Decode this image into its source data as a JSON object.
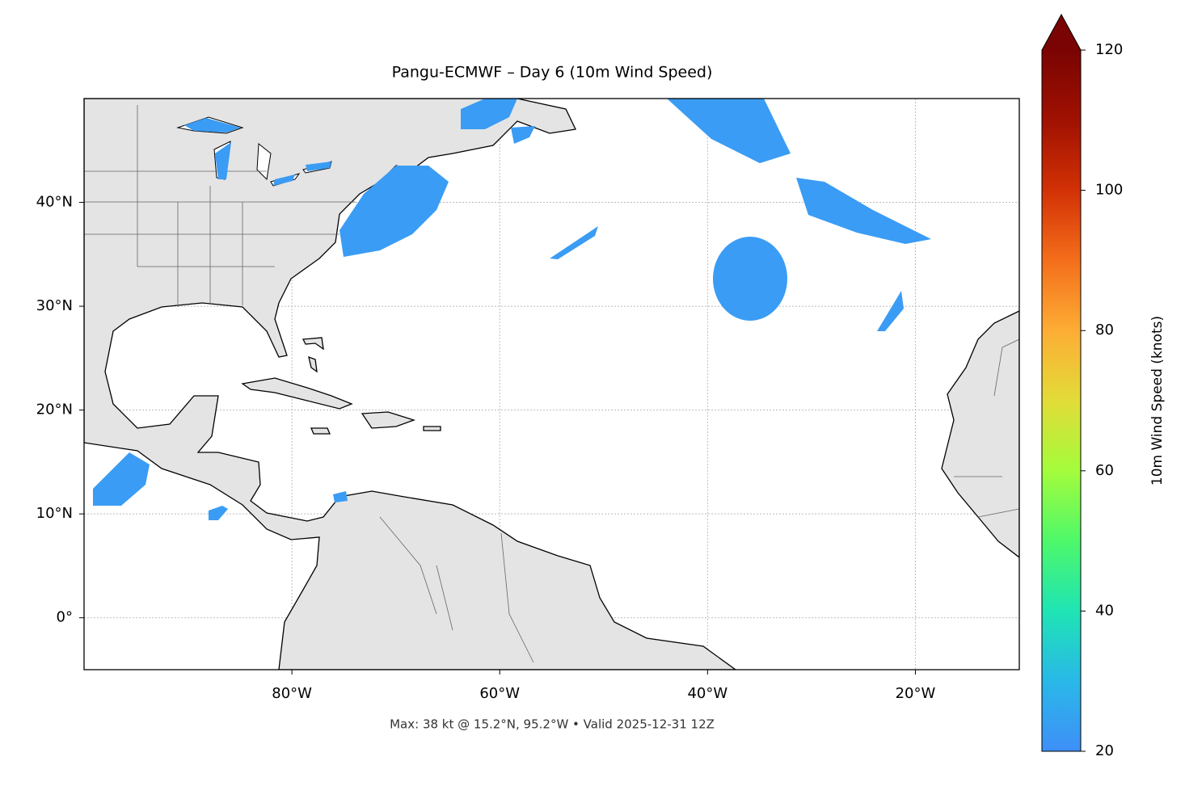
{
  "chart_data": {
    "type": "map",
    "title": "Pangu-ECMWF – Day 6 (10m Wind Speed)",
    "annotation": "Max: 38 kt @ 15.2°N, 95.2°W • Valid 2025-12-31 12Z",
    "xlim": [
      -100,
      -10
    ],
    "ylim": [
      -5,
      50
    ],
    "xticks": [
      {
        "value": -80,
        "label": "80°W"
      },
      {
        "value": -60,
        "label": "60°W"
      },
      {
        "value": -40,
        "label": "40°W"
      },
      {
        "value": -20,
        "label": "20°W"
      }
    ],
    "yticks": [
      {
        "value": 0,
        "label": "0°"
      },
      {
        "value": 10,
        "label": "10°N"
      },
      {
        "value": 20,
        "label": "20°N"
      },
      {
        "value": 30,
        "label": "30°N"
      },
      {
        "value": 40,
        "label": "40°N"
      }
    ],
    "grid": true,
    "colorbar": {
      "label": "10m Wind Speed (knots)",
      "clim": [
        20,
        120
      ],
      "ticks": [
        20,
        40,
        60,
        80,
        100,
        120
      ],
      "colors": [
        "#3f8ff8",
        "#29b8e8",
        "#1fe4b4",
        "#4ef86a",
        "#a4fc3c",
        "#e2dc38",
        "#fdad35",
        "#f46e1b",
        "#d23105",
        "#a01101",
        "#7a0403"
      ]
    }
  }
}
